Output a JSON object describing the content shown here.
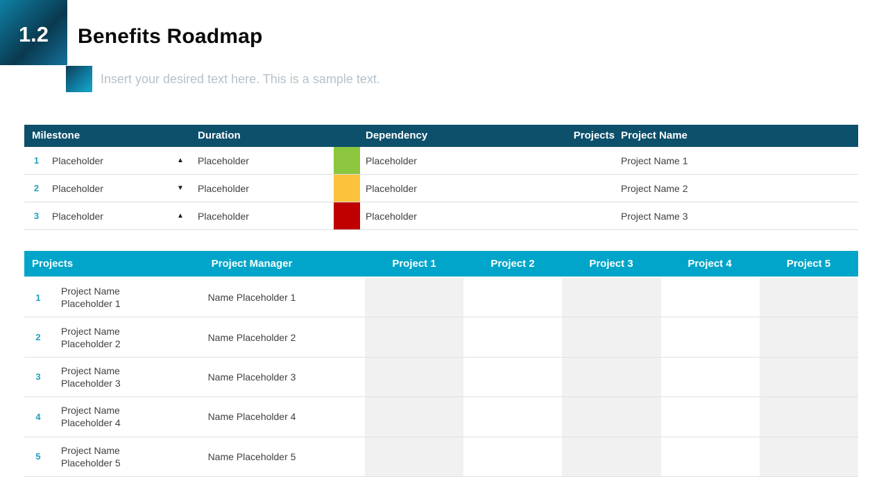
{
  "slide": {
    "badge_number": "1.2",
    "title": "Benefits Roadmap",
    "subtitle": "Insert your desired text here. This is a sample text."
  },
  "icons": {
    "trend_up": "▲",
    "trend_down": "▼"
  },
  "colors": {
    "table1_header_bg": "#0d506b",
    "table2_header_bg": "#00a5c9",
    "accent_number": "#1f9fbd",
    "status_green": "#8cc63f",
    "status_yellow": "#fcc23c",
    "status_red": "#c00000"
  },
  "milestone_table": {
    "headers": {
      "milestone": "Milestone",
      "duration": "Duration",
      "dependency": "Dependency",
      "projects": "Projects",
      "project_name": "Project Name"
    },
    "rows": [
      {
        "num": "1",
        "milestone": "Placeholder",
        "trend_icon": "▲",
        "duration": "Placeholder",
        "status_color": "#8cc63f",
        "dependency": "Placeholder",
        "projects": "",
        "project_name": "Project Name 1"
      },
      {
        "num": "2",
        "milestone": "Placeholder",
        "trend_icon": "▼",
        "duration": "Placeholder",
        "status_color": "#fcc23c",
        "dependency": "Placeholder",
        "projects": "",
        "project_name": "Project Name 2"
      },
      {
        "num": "3",
        "milestone": "Placeholder",
        "trend_icon": "▲",
        "duration": "Placeholder",
        "status_color": "#c00000",
        "dependency": "Placeholder",
        "projects": "",
        "project_name": "Project Name 3"
      }
    ]
  },
  "projects_table": {
    "headers": {
      "projects": "Projects",
      "manager": "Project Manager",
      "p1": "Project 1",
      "p2": "Project 2",
      "p3": "Project 3",
      "p4": "Project 4",
      "p5": "Project 5"
    },
    "rows": [
      {
        "num": "1",
        "project_name": "Project Name Placeholder 1",
        "manager": "Name Placeholder 1"
      },
      {
        "num": "2",
        "project_name": "Project Name Placeholder 2",
        "manager": "Name Placeholder 2"
      },
      {
        "num": "3",
        "project_name": "Project Name Placeholder 3",
        "manager": "Name Placeholder 3"
      },
      {
        "num": "4",
        "project_name": "Project Name Placeholder 4",
        "manager": "Name Placeholder 4"
      },
      {
        "num": "5",
        "project_name": "Project Name Placeholder 5",
        "manager": "Name Placeholder 5"
      }
    ]
  }
}
